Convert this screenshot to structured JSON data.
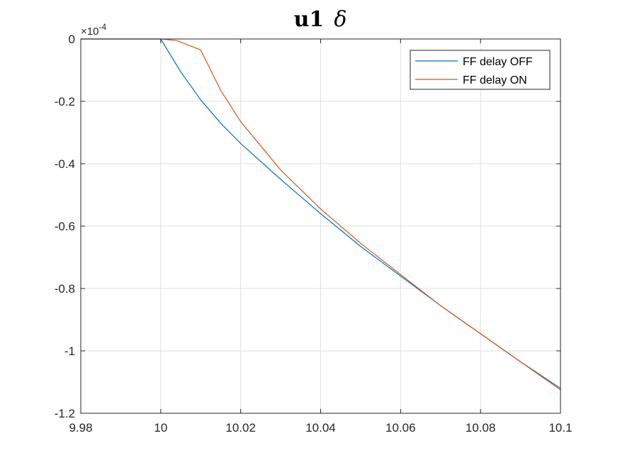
{
  "chart_data": {
    "type": "line",
    "title_main": "u1",
    "title_symbol": "δ",
    "xlabel": "",
    "ylabel": "",
    "y_exponent_label": "×10",
    "y_exponent_power": "-4",
    "xlim": [
      9.98,
      10.1
    ],
    "ylim": [
      -1.2,
      0
    ],
    "x_ticks": [
      9.98,
      10,
      10.02,
      10.04,
      10.06,
      10.08,
      10.1
    ],
    "x_tick_labels": [
      "9.98",
      "10",
      "10.02",
      "10.04",
      "10.06",
      "10.08",
      "10.1"
    ],
    "y_ticks": [
      0,
      -0.2,
      -0.4,
      -0.6,
      -0.8,
      -1,
      -1.2
    ],
    "y_tick_labels": [
      "0",
      "-0.2",
      "-0.4",
      "-0.6",
      "-0.8",
      "-1",
      "-1.2"
    ],
    "grid": true,
    "legend_position": "top-right",
    "series": [
      {
        "name": "FF delay OFF",
        "color": "#0072BD",
        "x": [
          9.98,
          9.99,
          10.0,
          10.005,
          10.01,
          10.015,
          10.02,
          10.03,
          10.04,
          10.05,
          10.06,
          10.07,
          10.08,
          10.09,
          10.1
        ],
        "y": [
          0,
          0,
          0,
          -0.105,
          -0.195,
          -0.27,
          -0.335,
          -0.45,
          -0.56,
          -0.665,
          -0.76,
          -0.855,
          -0.945,
          -1.035,
          -1.12
        ]
      },
      {
        "name": "FF delay ON",
        "color": "#D95319",
        "x": [
          9.98,
          9.99,
          10.0,
          10.004,
          10.007,
          10.01,
          10.015,
          10.02,
          10.03,
          10.04,
          10.05,
          10.06,
          10.07,
          10.08,
          10.09,
          10.1
        ],
        "y": [
          0,
          0,
          0,
          -0.005,
          -0.02,
          -0.035,
          -0.165,
          -0.265,
          -0.42,
          -0.545,
          -0.655,
          -0.755,
          -0.855,
          -0.945,
          -1.035,
          -1.125
        ]
      }
    ]
  }
}
